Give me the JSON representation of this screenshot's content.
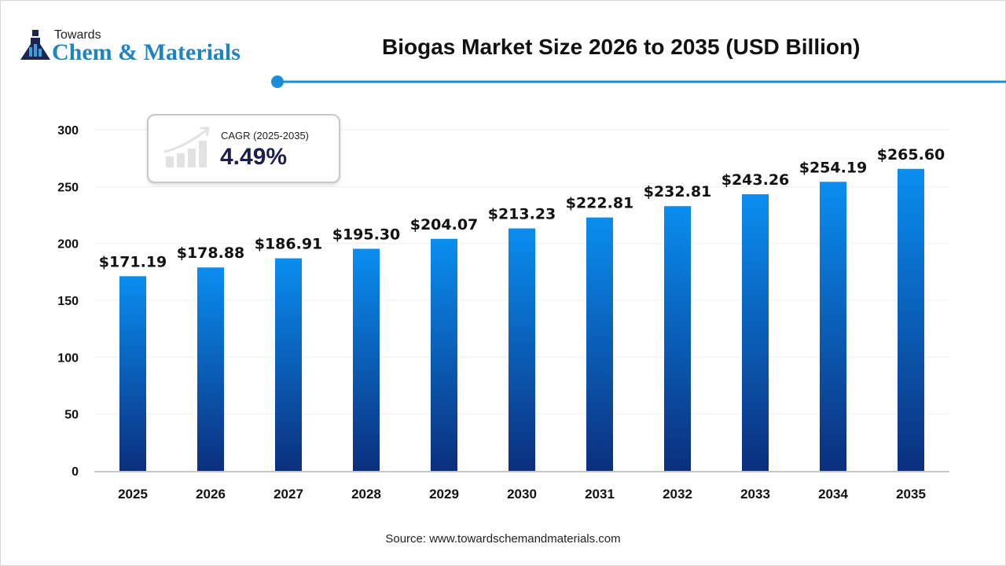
{
  "brand": {
    "line1": "Towards",
    "line2": "Chem & Materials"
  },
  "cagr": {
    "label": "CAGR (2025-2035)",
    "value": "4.49%"
  },
  "source": "Source: www.towardschemandmaterials.com",
  "colors": {
    "bar_top": "#0a8ef0",
    "bar_bottom": "#0b2f7e",
    "accent_line": "#1b8fd6"
  },
  "chart_data": {
    "type": "bar",
    "title": "Biogas Market Size 2026 to 2035 (USD Billion)",
    "categories": [
      "2025",
      "2026",
      "2027",
      "2028",
      "2029",
      "2030",
      "2031",
      "2032",
      "2033",
      "2034",
      "2035"
    ],
    "values": [
      171.19,
      178.88,
      186.91,
      195.3,
      204.07,
      213.23,
      222.81,
      232.81,
      243.26,
      254.19,
      265.6
    ],
    "data_labels": [
      "$171.19",
      "$178.88",
      "$186.91",
      "$195.30",
      "$204.07",
      "$213.23",
      "$222.81",
      "$232.81",
      "$243.26",
      "$254.19",
      "$265.60"
    ],
    "yticks": [
      0,
      50,
      100,
      150,
      200,
      250,
      300
    ],
    "ylim": [
      0,
      300
    ],
    "grid": true
  }
}
